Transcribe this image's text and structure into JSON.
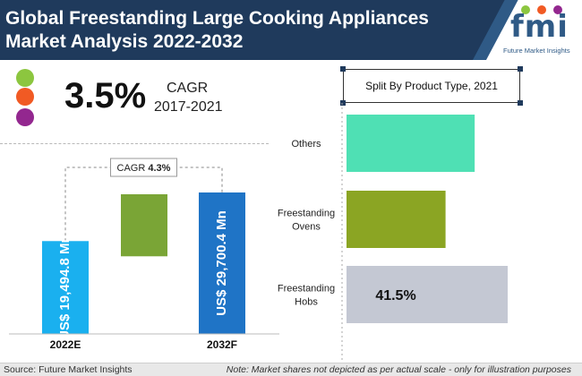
{
  "header": {
    "title_line1": "Global Freestanding Large Cooking Appliances",
    "title_line2": "Market Analysis 2022-2032"
  },
  "logo": {
    "brand": "fmi",
    "tagline": "Future Market Insights"
  },
  "cagr_panel": {
    "value": "3.5%",
    "label": "CAGR",
    "period": "2017-2021",
    "bullet_colors": [
      "#8cc63f",
      "#f15a24",
      "#93278f"
    ]
  },
  "colors": {
    "header": "#1f3a5c",
    "accent": "#2f5a86"
  },
  "chart_data": [
    {
      "type": "bar",
      "categories": [
        "2022E",
        "2032F"
      ],
      "series": [
        {
          "values": [
            19494.8,
            29700.4
          ],
          "data_labels": [
            "US$ 19,494.8 Mn",
            "US$ 29,700.4 Mn"
          ],
          "colors": [
            "#1ab0ef",
            "#1f74c6"
          ]
        }
      ],
      "growth_box_color": "#7aa536",
      "annotation": "CAGR 4.3%",
      "annotation_prefix": "CAGR",
      "annotation_value": "4.3%"
    },
    {
      "type": "bar",
      "orientation": "horizontal",
      "title": "Split By Product Type, 2021",
      "categories": [
        "Others",
        "Freestanding Ovens",
        "Freestanding Hobs"
      ],
      "category_lines": [
        [
          "Others"
        ],
        [
          "Freestanding",
          "Ovens"
        ],
        [
          "Freestanding",
          "Hobs"
        ]
      ],
      "values": [
        33,
        25.5,
        41.5
      ],
      "colors": [
        "#4fe0b4",
        "#8ba523",
        "#c4c8d3"
      ],
      "data_labels": [
        "",
        "",
        "41.5%"
      ]
    }
  ],
  "footer": {
    "source": "Source: Future Market Insights",
    "note": "Note: Market shares not depicted as per actual scale - only for illustration purposes"
  }
}
